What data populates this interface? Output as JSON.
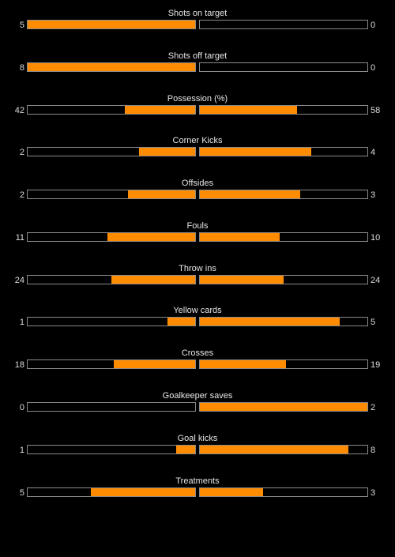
{
  "colors": {
    "background": "#000000",
    "fill": "#ff8c00",
    "border": "#8a8a8a",
    "text": "#dddddd"
  },
  "stats": [
    {
      "label": "Shots on target",
      "home": "5",
      "away": "0",
      "home_fill": 1.0,
      "away_fill": 0.0
    },
    {
      "label": "Shots off target",
      "home": "8",
      "away": "0",
      "home_fill": 1.0,
      "away_fill": 0.0
    },
    {
      "label": "Possession (%)",
      "home": "42",
      "away": "58",
      "home_fill": 0.42,
      "away_fill": 0.58
    },
    {
      "label": "Corner Kicks",
      "home": "2",
      "away": "4",
      "home_fill": 0.333,
      "away_fill": 0.667
    },
    {
      "label": "Offsides",
      "home": "2",
      "away": "3",
      "home_fill": 0.4,
      "away_fill": 0.6
    },
    {
      "label": "Fouls",
      "home": "11",
      "away": "10",
      "home_fill": 0.524,
      "away_fill": 0.476
    },
    {
      "label": "Throw ins",
      "home": "24",
      "away": "24",
      "home_fill": 0.5,
      "away_fill": 0.5
    },
    {
      "label": "Yellow cards",
      "home": "1",
      "away": "5",
      "home_fill": 0.167,
      "away_fill": 0.833
    },
    {
      "label": "Crosses",
      "home": "18",
      "away": "19",
      "home_fill": 0.486,
      "away_fill": 0.514
    },
    {
      "label": "Goalkeeper saves",
      "home": "0",
      "away": "2",
      "home_fill": 0.0,
      "away_fill": 1.0
    },
    {
      "label": "Goal kicks",
      "home": "1",
      "away": "8",
      "home_fill": 0.111,
      "away_fill": 0.889
    },
    {
      "label": "Treatments",
      "home": "5",
      "away": "3",
      "home_fill": 0.625,
      "away_fill": 0.375
    }
  ]
}
